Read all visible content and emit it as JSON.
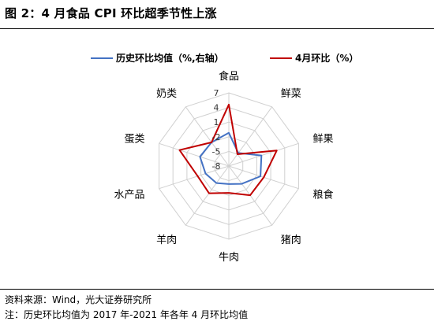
{
  "title": "图 2：4 月食品 CPI 环比超季节性上涨",
  "source": "资料来源：Wind，光大证券研究所",
  "footnote": "注：历史环比均值为 2017 年-2021 年各年 4 月环比均值",
  "chart_data": {
    "type": "radar",
    "categories": [
      "食品",
      "鲜菜",
      "鲜果",
      "粮食",
      "猪肉",
      "牛肉",
      "羊肉",
      "水产品",
      "蛋类",
      "奶类"
    ],
    "radial_ticks": [
      "7",
      "4",
      "1",
      "-2",
      "-5",
      "-8"
    ],
    "rlim": [
      -8,
      7
    ],
    "grid": true,
    "legend_position": "top",
    "series": [
      {
        "name": "历史环比均值（%,右轴）",
        "color": "#4472c4",
        "values": [
          -1.2,
          -4.7,
          -1.0,
          -1.2,
          -3.5,
          -4.3,
          -3.7,
          -3.0,
          -1.8,
          -2.0
        ]
      },
      {
        "name": "4月环比（%）",
        "color": "#c00000",
        "values": [
          4.6,
          -5.0,
          2.3,
          -0.5,
          -0.6,
          -2.5,
          -1.1,
          -1.3,
          2.6,
          -2.0
        ]
      }
    ]
  }
}
